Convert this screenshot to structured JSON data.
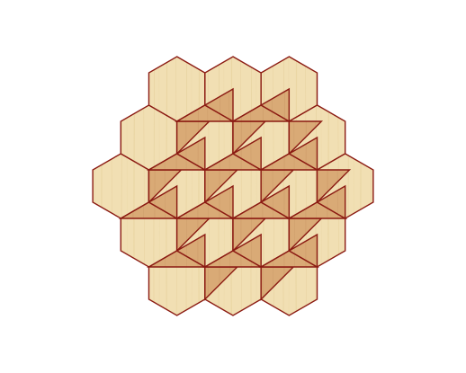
{
  "board": {
    "type": "trihexagonal-tiling",
    "hexagon_count": 19,
    "triangle_count": 38,
    "colors": {
      "background": "#ffffff",
      "hexagon_fill": "#f1dfb3",
      "hexagon_grain": "#e4cd97",
      "triangle_fill": "#d9aa76",
      "triangle_grain": "#c99664",
      "line": "#8b1a12"
    }
  }
}
